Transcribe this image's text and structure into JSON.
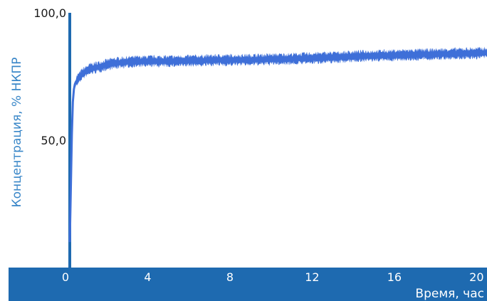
{
  "chart_data": {
    "type": "line",
    "title": "",
    "xlabel": "Время, час",
    "ylabel": "Концентрация, % НКПР",
    "xlim": [
      0,
      20.3
    ],
    "ylim": [
      0,
      100
    ],
    "x_ticks": [
      "0",
      "4",
      "8",
      "12",
      "16",
      "20"
    ],
    "x_tick_values": [
      0,
      4,
      8,
      12,
      16,
      20
    ],
    "y_ticks": [
      "50,0",
      "100,0"
    ],
    "y_tick_values": [
      50,
      100
    ],
    "grid": false,
    "colors": {
      "line": "#3e6fd8",
      "axis": "#1e6ab0",
      "xaxis_band": "#1e6ab0",
      "ylabel": "#3a87c8"
    },
    "series": [
      {
        "x": [
          0,
          0.05,
          0.1,
          0.15,
          0.2,
          0.25,
          0.3,
          0.4,
          0.5,
          0.6,
          0.8,
          1.0,
          1.5,
          2.0,
          2.5,
          3.0,
          4.0,
          5.0,
          6.0,
          7.0,
          8.0,
          9.0,
          10.0,
          11.0,
          12.0,
          13.0,
          14.0,
          15.0,
          16.0,
          17.0,
          18.0,
          19.0,
          20.0,
          20.3
        ],
        "values": [
          10,
          30,
          52,
          65,
          70,
          72,
          73,
          74,
          75,
          76,
          77,
          78,
          79,
          80,
          80.5,
          80.8,
          81,
          81,
          81.2,
          81.4,
          81.5,
          81.6,
          81.8,
          82,
          82.3,
          82.6,
          83,
          83.2,
          83.4,
          83.6,
          83.8,
          84,
          84.2,
          84.3
        ]
      }
    ]
  }
}
